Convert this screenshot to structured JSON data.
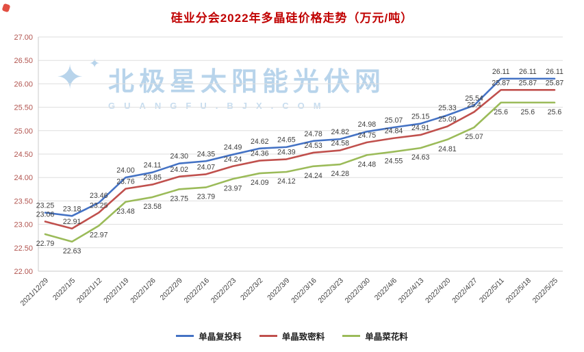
{
  "corner_marker": {
    "color": "#df3c2e"
  },
  "watermark": {
    "line1": "北极星太阳能光伏网",
    "line2": "GUANGFU.BJX.COM",
    "star_icon": "✦",
    "color": "#accde7"
  },
  "chart_data": {
    "type": "line",
    "title": "硅业分会2022年多晶硅价格走势（万元/吨）",
    "title_color": "#c00000",
    "ylim": [
      22,
      27
    ],
    "ytick_step": 0.5,
    "grid": true,
    "legend_position": "bottom",
    "categories": [
      "2021/12/29",
      "2022/1/5",
      "2022/1/12",
      "2022/1/19",
      "2022/1/26",
      "2022/2/9",
      "2022/2/16",
      "2022/2/23",
      "2022/3/2",
      "2022/3/9",
      "2022/3/16",
      "2022/3/23",
      "2022/3/30",
      "2022/4/6",
      "2022/4/13",
      "2022/4/20",
      "2022/4/27",
      "2022/5/11",
      "2022/5/18",
      "2022/5/25"
    ],
    "series": [
      {
        "name": "单晶复投料",
        "color": "#4472c4",
        "label_position": "above",
        "values": [
          23.25,
          23.18,
          23.46,
          24.0,
          24.11,
          24.3,
          24.35,
          24.49,
          24.62,
          24.65,
          24.78,
          24.82,
          24.98,
          25.07,
          25.15,
          25.33,
          25.54,
          26.11,
          26.11,
          26.11
        ],
        "labels": [
          "23.25",
          "23.18",
          "23.46",
          "24.00",
          "24.11",
          "24.30",
          "24.35",
          "24.49",
          "24.62",
          "24.65",
          "24.78",
          "24.82",
          "24.98",
          "25.07",
          "25.15",
          "25.33",
          "25.54",
          "26.11",
          "26.11",
          "26.11"
        ]
      },
      {
        "name": "单晶致密料",
        "color": "#c0504d",
        "label_position": "above",
        "values": [
          23.06,
          22.91,
          23.25,
          23.76,
          23.85,
          24.02,
          24.07,
          24.24,
          24.36,
          24.39,
          24.53,
          24.58,
          24.75,
          24.84,
          24.91,
          25.09,
          25.4,
          25.87,
          25.87,
          25.87
        ],
        "labels": [
          "23.06",
          "22.91",
          "23.25",
          "23.76",
          "23.85",
          "24.02",
          "24.07",
          "24.24",
          "24.36",
          "24.39",
          "24.53",
          "24.58",
          "24.75",
          "24.84",
          "24.91",
          "25.09",
          "25.4",
          "25.87",
          "25.87",
          "25.87"
        ]
      },
      {
        "name": "单晶菜花料",
        "color": "#9bbb59",
        "label_position": "below",
        "values": [
          22.79,
          22.63,
          22.97,
          23.48,
          23.58,
          23.75,
          23.79,
          23.97,
          24.09,
          24.12,
          24.24,
          24.28,
          24.48,
          24.55,
          24.63,
          24.81,
          25.07,
          25.6,
          25.6,
          25.6
        ],
        "labels": [
          "22.79",
          "22.63",
          "22.97",
          "23.48",
          "23.58",
          "23.75",
          "23.79",
          "23.97",
          "24.09",
          "24.12",
          "24.24",
          "24.28",
          "24.48",
          "24.55",
          "24.63",
          "24.81",
          "25.07",
          "25.6",
          "25.6",
          "25.6"
        ]
      }
    ]
  }
}
